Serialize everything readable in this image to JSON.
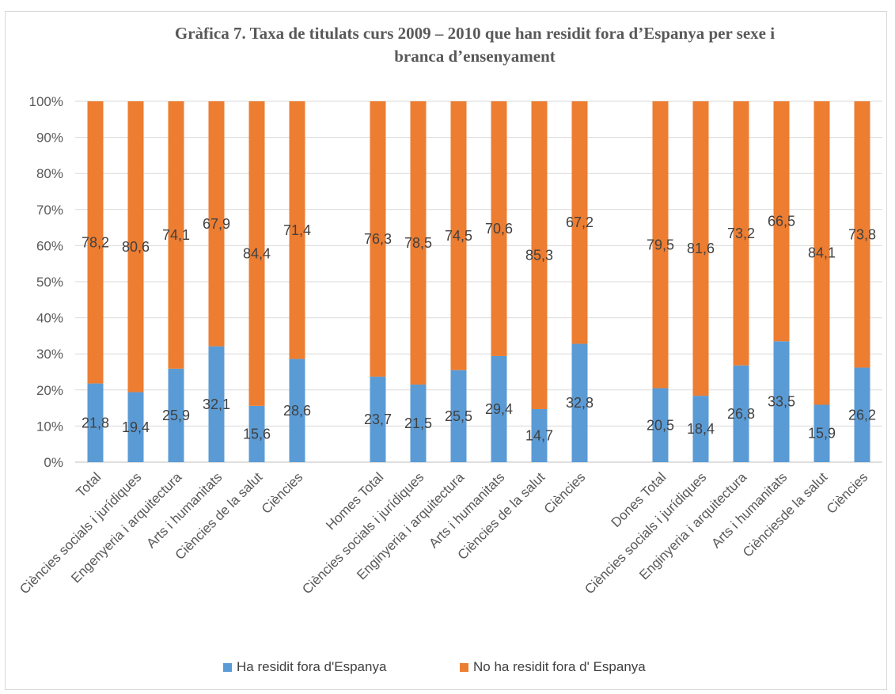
{
  "chart_data": {
    "type": "bar",
    "stacked": true,
    "percent_stacked": true,
    "title": "Gràfica 7. Taxa de titulats curs 2009 – 2010 que han residit fora d’Espanya per sexe i branca d’ensenyament",
    "categories": [
      "Total",
      "Ciències socials i jurídiques",
      "Engenyeria i arquitectura",
      "Arts i humanitats",
      "Ciències de la salut",
      "Ciències",
      "",
      "Homes Total",
      "Ciències socials i jurídiques",
      "Enginyeria i arquitectura",
      "Arts i humanitats",
      "Ciències de la salut",
      "Ciències",
      "",
      "Dones Total",
      "Ciències socials i jurídiques",
      "Enginyeria i arquitectura",
      "Arts i humanitats",
      "Ciènciesde la salut",
      "Ciències"
    ],
    "series": [
      {
        "name": "Ha residit fora d'Espanya",
        "color": "#5b9bd5",
        "values": [
          21.8,
          19.4,
          25.9,
          32.1,
          15.6,
          28.6,
          null,
          23.7,
          21.5,
          25.5,
          29.4,
          14.7,
          32.8,
          null,
          20.5,
          18.4,
          26.8,
          33.5,
          15.9,
          26.2
        ]
      },
      {
        "name": "No ha residit fora d' Espanya",
        "color": "#ed7d31",
        "values": [
          78.2,
          80.6,
          74.1,
          67.9,
          84.4,
          71.4,
          null,
          76.3,
          78.5,
          74.5,
          70.6,
          85.3,
          67.2,
          null,
          79.5,
          81.6,
          73.2,
          66.5,
          84.1,
          73.8
        ]
      }
    ],
    "data_labels": [
      [
        "21,8",
        "19,4",
        "25,9",
        "32,1",
        "15,6",
        "28,6",
        "",
        "23,7",
        "21,5",
        "25,5",
        "29,4",
        "14,7",
        "32,8",
        "",
        "20,5",
        "18,4",
        "26,8",
        "33,5",
        "15,9",
        "26,2"
      ],
      [
        "78,2",
        "80,6",
        "74,1",
        "67,9",
        "84,4",
        "71,4",
        "",
        "76,3",
        "78,5",
        "74,5",
        "70,6",
        "85,3",
        "67,2",
        "",
        "79,5",
        "81,6",
        "73,2",
        "66,5",
        "84,1",
        "73,8"
      ]
    ],
    "ylim": [
      0,
      100
    ],
    "yticks": [
      "0%",
      "10%",
      "20%",
      "30%",
      "40%",
      "50%",
      "60%",
      "70%",
      "80%",
      "90%",
      "100%"
    ],
    "grid": true,
    "legend_position": "bottom"
  }
}
